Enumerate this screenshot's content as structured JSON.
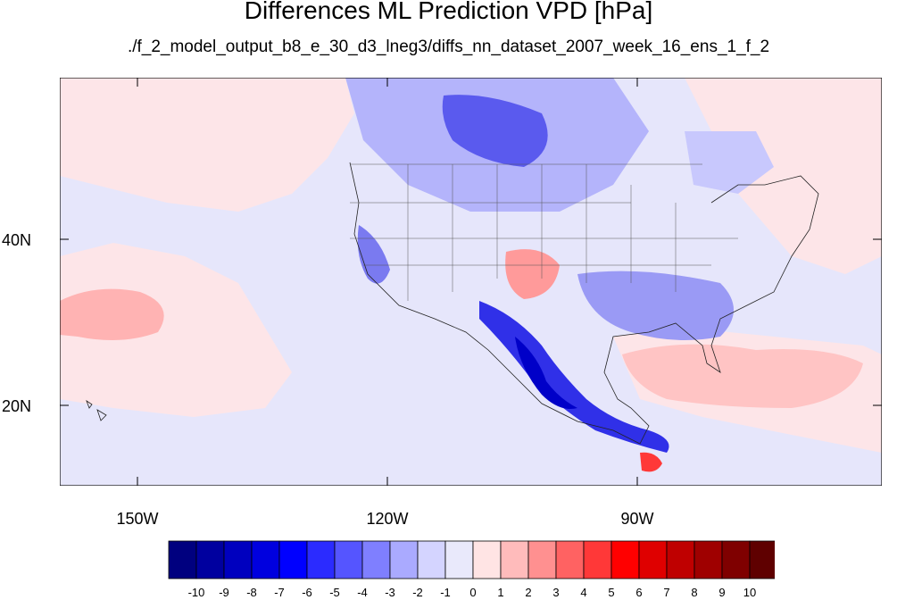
{
  "title": "Differences ML Prediction VPD [hPa]",
  "subtitle": "./f_2_model_output_b8_e_30_d3_lneg3/diffs_nn_dataset_2007_week_16_ens_1_f_2",
  "lat_labels": [
    "40N",
    "20N"
  ],
  "lon_labels": [
    "150W",
    "120W",
    "90W"
  ],
  "colorbar": {
    "labels": [
      "-10",
      "-9",
      "-8",
      "-7",
      "-6",
      "-5",
      "-4",
      "-3",
      "-2",
      "-1",
      "0",
      "1",
      "2",
      "3",
      "4",
      "5",
      "6",
      "7",
      "8",
      "9",
      "10"
    ],
    "colors": [
      "#00007f",
      "#00009f",
      "#0000bf",
      "#0000df",
      "#0000ff",
      "#2b2bff",
      "#5555ff",
      "#7f7fff",
      "#aaaaff",
      "#d4d4ff",
      "#e9e9fb",
      "#ffe4e4",
      "#ffbbbb",
      "#ff9090",
      "#ff6262",
      "#ff3838",
      "#ff0000",
      "#df0000",
      "#bf0000",
      "#9f0000",
      "#7f0000",
      "#5f0000"
    ]
  }
}
